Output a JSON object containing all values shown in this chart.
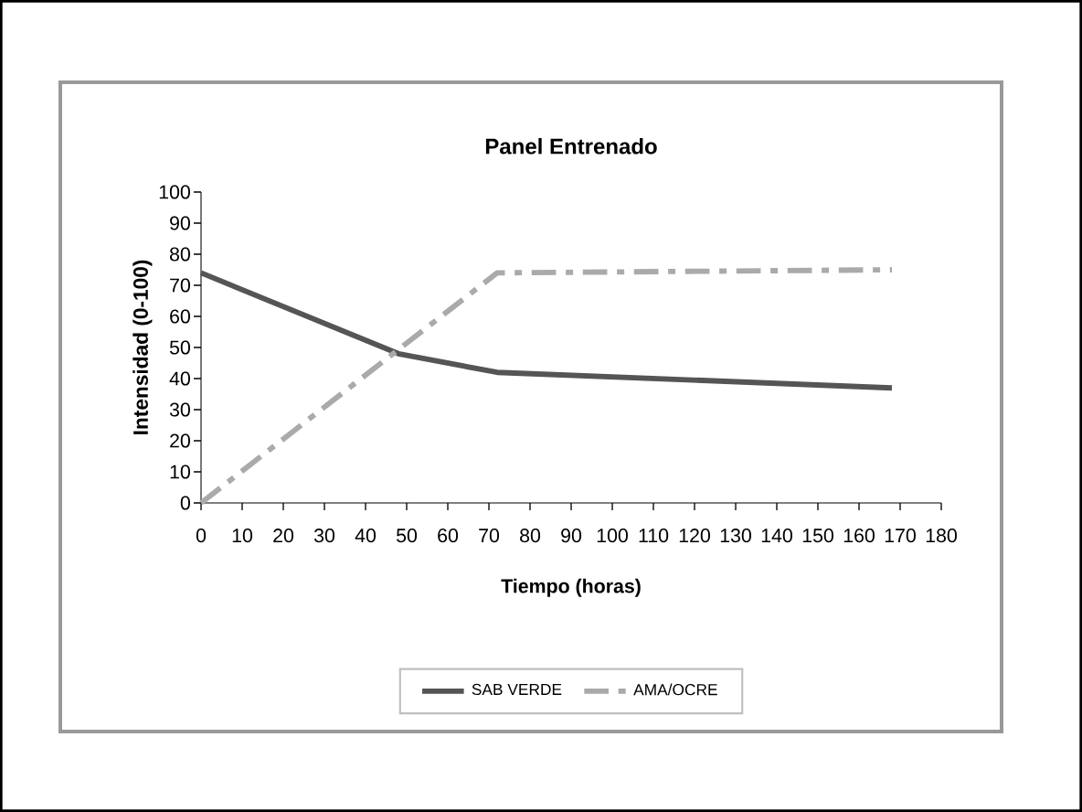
{
  "chart_data": {
    "type": "line",
    "title": "Panel Entrenado",
    "xlabel": "Tiempo (horas)",
    "ylabel": "Intensidad (0-100)",
    "xlim": [
      0,
      180
    ],
    "xticks": [
      0,
      10,
      20,
      30,
      40,
      50,
      60,
      70,
      80,
      90,
      100,
      110,
      120,
      130,
      140,
      150,
      160,
      170,
      180
    ],
    "ylim": [
      0,
      100
    ],
    "yticks": [
      0,
      10,
      20,
      30,
      40,
      50,
      60,
      70,
      80,
      90,
      100
    ],
    "grid": false,
    "legend": "bottom",
    "marker": "none",
    "series": [
      {
        "name": "SAB VERDE",
        "color": "#555555",
        "line_style": "solid",
        "x": [
          0,
          48,
          72,
          168
        ],
        "values": [
          74,
          48,
          42,
          37
        ]
      },
      {
        "name": "AMA/OCRE",
        "color": "#aaaaaa",
        "line_style": "dashed",
        "x": [
          0,
          72,
          168
        ],
        "values": [
          0,
          74,
          75
        ]
      }
    ]
  }
}
